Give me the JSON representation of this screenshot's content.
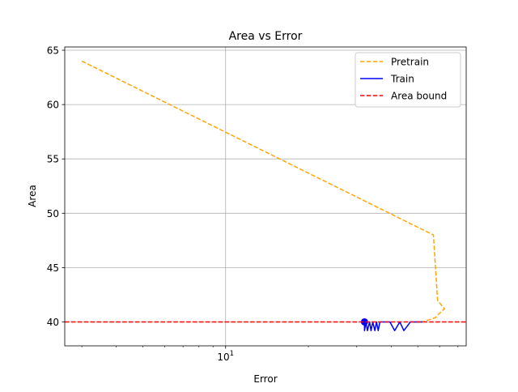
{
  "chart_data": {
    "type": "line",
    "title": "Area vs Error",
    "xlabel": "Error",
    "ylabel": "Area",
    "x_scale": "log",
    "xlim": [
      2.6,
      75
    ],
    "ylim": [
      37.8,
      65.3
    ],
    "grid": true,
    "legend_position": "top-right",
    "x_ticks": [
      {
        "value": 10,
        "label": "10",
        "exponent": "1"
      }
    ],
    "y_ticks": [
      40,
      45,
      50,
      55,
      60,
      65
    ],
    "series": [
      {
        "name": "Pretrain",
        "color": "#ffa500",
        "style": "dashed",
        "x": [
          3.0,
          57.0,
          59.0,
          62.5,
          60.0,
          58.0,
          55.0,
          52.0,
          48.0
        ],
        "y": [
          64.0,
          48.0,
          42.0,
          41.2,
          40.8,
          40.4,
          40.2,
          40.0,
          40.0
        ]
      },
      {
        "name": "Train",
        "color": "#0000ff",
        "style": "solid",
        "x": [
          32.0,
          32.0,
          32.4,
          32.8,
          33.4,
          33.8,
          34.3,
          34.9,
          35.4,
          35.9,
          36.4,
          36.9,
          38.0,
          39.6,
          41.2,
          43.0,
          44.5,
          47.0,
          52.0
        ],
        "y": [
          40.0,
          39.2,
          40.0,
          39.2,
          40.0,
          39.2,
          40.0,
          39.2,
          40.0,
          39.2,
          40.0,
          40.0,
          40.0,
          40.0,
          39.2,
          40.0,
          39.2,
          40.0,
          40.0
        ],
        "marker": {
          "x": 32.0,
          "y": 40.0
        }
      },
      {
        "name": "Area bound",
        "color": "#ff0000",
        "style": "dashed",
        "type": "hline",
        "y": 40
      }
    ]
  }
}
